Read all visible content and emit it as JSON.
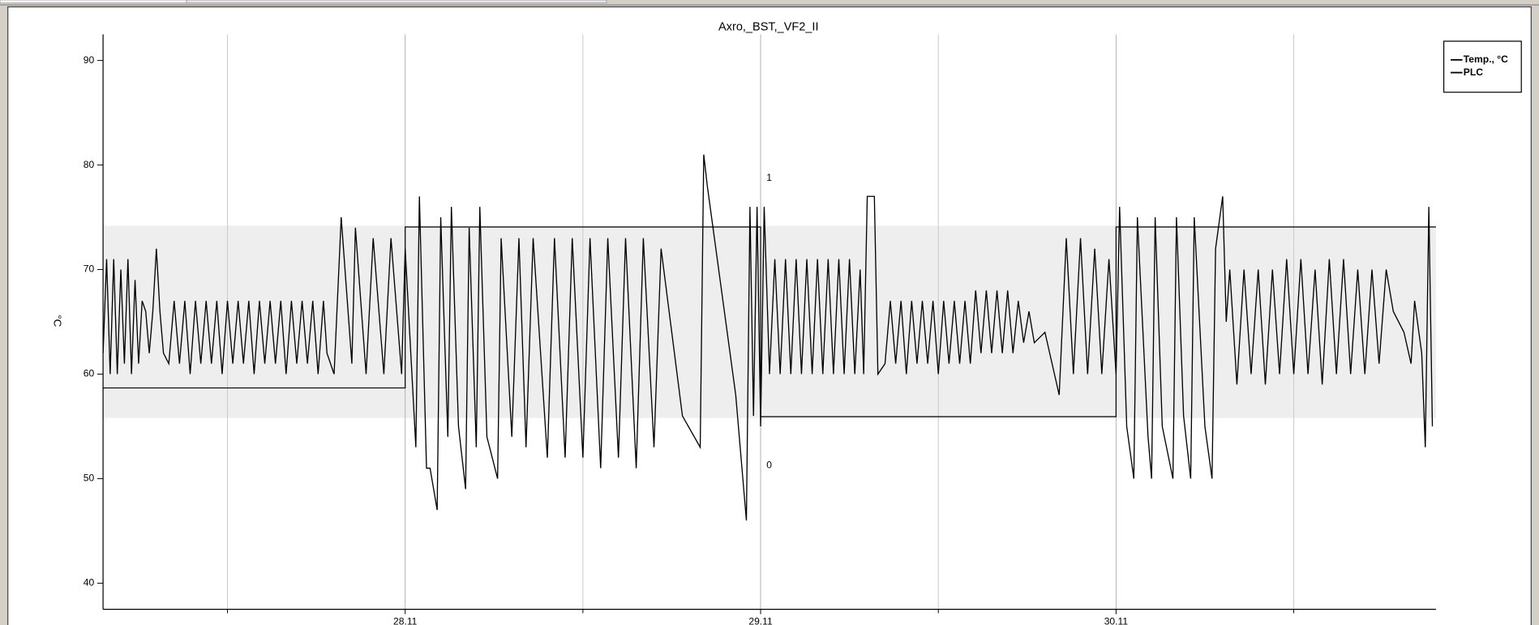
{
  "chart_data": {
    "type": "line",
    "title": "Axro,_BST,_VF2_II",
    "y_label": "°C",
    "xlim": [
      27.15,
      30.9
    ],
    "xticks": [
      {
        "value": 28,
        "label": "28.11"
      },
      {
        "value": 29,
        "label": "29.11"
      },
      {
        "value": 30,
        "label": "30.11"
      }
    ],
    "xgrid_minor": [
      27.5,
      28.5,
      29.5,
      30.5
    ],
    "ylim": [
      37.5,
      92.5
    ],
    "yticks": [
      40,
      50,
      60,
      70,
      80,
      90
    ],
    "y2lim": [
      -0.5,
      1.5
    ],
    "y2ticks": [
      0,
      1
    ],
    "band": [
      55.8,
      74.2
    ],
    "band_color": "#eeeeee",
    "grid": true,
    "legend": "top-right",
    "series": [
      {
        "name": "Temp., °C",
        "color": "#000000",
        "x": [
          27.15,
          27.16,
          27.17,
          27.18,
          27.19,
          27.2,
          27.21,
          27.22,
          27.23,
          27.24,
          27.25,
          27.26,
          27.27,
          27.28,
          27.29,
          27.3,
          27.31,
          27.32,
          27.335,
          27.35,
          27.365,
          27.38,
          27.395,
          27.41,
          27.425,
          27.44,
          27.455,
          27.47,
          27.485,
          27.5,
          27.515,
          27.53,
          27.545,
          27.56,
          27.575,
          27.59,
          27.605,
          27.62,
          27.635,
          27.65,
          27.665,
          27.68,
          27.695,
          27.71,
          27.725,
          27.74,
          27.755,
          27.77,
          27.78,
          27.8,
          27.82,
          27.85,
          27.86,
          27.89,
          27.91,
          27.94,
          27.96,
          27.99,
          28.0,
          28.03,
          28.04,
          28.06,
          28.07,
          28.09,
          28.1,
          28.12,
          28.13,
          28.15,
          28.17,
          28.18,
          28.2,
          28.21,
          28.23,
          28.26,
          28.27,
          28.3,
          28.32,
          28.34,
          28.36,
          28.4,
          28.42,
          28.45,
          28.47,
          28.5,
          28.52,
          28.55,
          28.57,
          28.6,
          28.62,
          28.65,
          28.67,
          28.7,
          28.72,
          28.78,
          28.83,
          28.84,
          28.85,
          28.93,
          28.96,
          28.97,
          28.98,
          28.99,
          29.0,
          29.01,
          29.025,
          29.04,
          29.055,
          29.07,
          29.085,
          29.1,
          29.115,
          29.13,
          29.145,
          29.16,
          29.175,
          29.19,
          29.205,
          29.22,
          29.235,
          29.25,
          29.265,
          29.28,
          29.29,
          29.3,
          29.32,
          29.33,
          29.35,
          29.365,
          29.38,
          29.395,
          29.41,
          29.425,
          29.44,
          29.455,
          29.47,
          29.485,
          29.5,
          29.515,
          29.53,
          29.545,
          29.56,
          29.575,
          29.59,
          29.605,
          29.62,
          29.635,
          29.65,
          29.665,
          29.68,
          29.695,
          29.71,
          29.725,
          29.74,
          29.755,
          29.77,
          29.8,
          29.84,
          29.86,
          29.88,
          29.9,
          29.92,
          29.94,
          29.96,
          29.98,
          30.0,
          30.01,
          30.03,
          30.05,
          30.06,
          30.09,
          30.1,
          30.11,
          30.13,
          30.16,
          30.17,
          30.19,
          30.21,
          30.22,
          30.25,
          30.27,
          30.28,
          30.3,
          30.31,
          30.32,
          30.34,
          30.36,
          30.38,
          30.4,
          30.42,
          30.44,
          30.46,
          30.48,
          30.5,
          30.52,
          30.54,
          30.56,
          30.58,
          30.6,
          30.62,
          30.64,
          30.66,
          30.68,
          30.7,
          30.72,
          30.74,
          30.76,
          30.78,
          30.81,
          30.83,
          30.84,
          30.86,
          30.87,
          30.88,
          30.89
        ],
        "values": [
          62,
          71,
          60,
          71,
          60,
          70,
          61,
          71,
          60,
          69,
          61,
          67,
          66,
          62,
          66,
          72,
          66,
          62,
          61,
          67,
          61,
          67,
          60,
          67,
          61,
          67,
          61,
          67,
          60,
          67,
          61,
          67,
          61,
          67,
          60,
          67,
          61,
          67,
          61,
          67,
          60,
          67,
          61,
          67,
          61,
          67,
          60,
          67,
          62,
          60,
          75,
          61,
          74,
          60,
          73,
          60,
          73,
          60,
          72,
          53,
          77,
          51,
          51,
          47,
          75,
          54,
          76,
          55,
          49,
          74,
          53,
          76,
          54,
          50,
          73,
          54,
          73,
          53,
          73,
          52,
          73,
          52,
          73,
          52,
          73,
          51,
          73,
          52,
          73,
          51,
          73,
          53,
          72,
          56,
          53,
          81,
          78,
          58,
          46,
          76,
          56,
          76,
          55,
          76,
          60,
          71,
          60,
          71,
          60,
          71,
          60,
          71,
          60,
          71,
          60,
          71,
          60,
          71,
          60,
          71,
          60,
          70,
          60,
          77,
          77,
          60,
          61,
          67,
          61,
          67,
          60,
          67,
          61,
          67,
          61,
          67,
          60,
          67,
          61,
          67,
          61,
          67,
          61,
          68,
          62,
          68,
          62,
          68,
          62,
          68,
          62,
          67,
          63,
          66,
          63,
          64,
          58,
          73,
          60,
          73,
          60,
          72,
          60,
          71,
          60,
          76,
          55,
          50,
          75,
          54,
          50,
          75,
          55,
          50,
          75,
          56,
          50,
          75,
          55,
          50,
          72,
          77,
          65,
          70,
          59,
          70,
          60,
          70,
          59,
          70,
          60,
          71,
          60,
          71,
          60,
          70,
          59,
          71,
          60,
          71,
          60,
          70,
          60,
          70,
          61,
          70,
          66,
          64,
          61,
          67,
          62,
          53,
          76,
          55
        ]
      },
      {
        "name": "PLC",
        "color": "#000000",
        "axis": "y2",
        "x": [
          27.15,
          28.0,
          28.0,
          29.0,
          29.0,
          30.0,
          30.0,
          30.9
        ],
        "values": [
          0.27,
          0.27,
          0.83,
          0.83,
          0.17,
          0.17,
          0.83,
          0.83
        ]
      }
    ]
  }
}
